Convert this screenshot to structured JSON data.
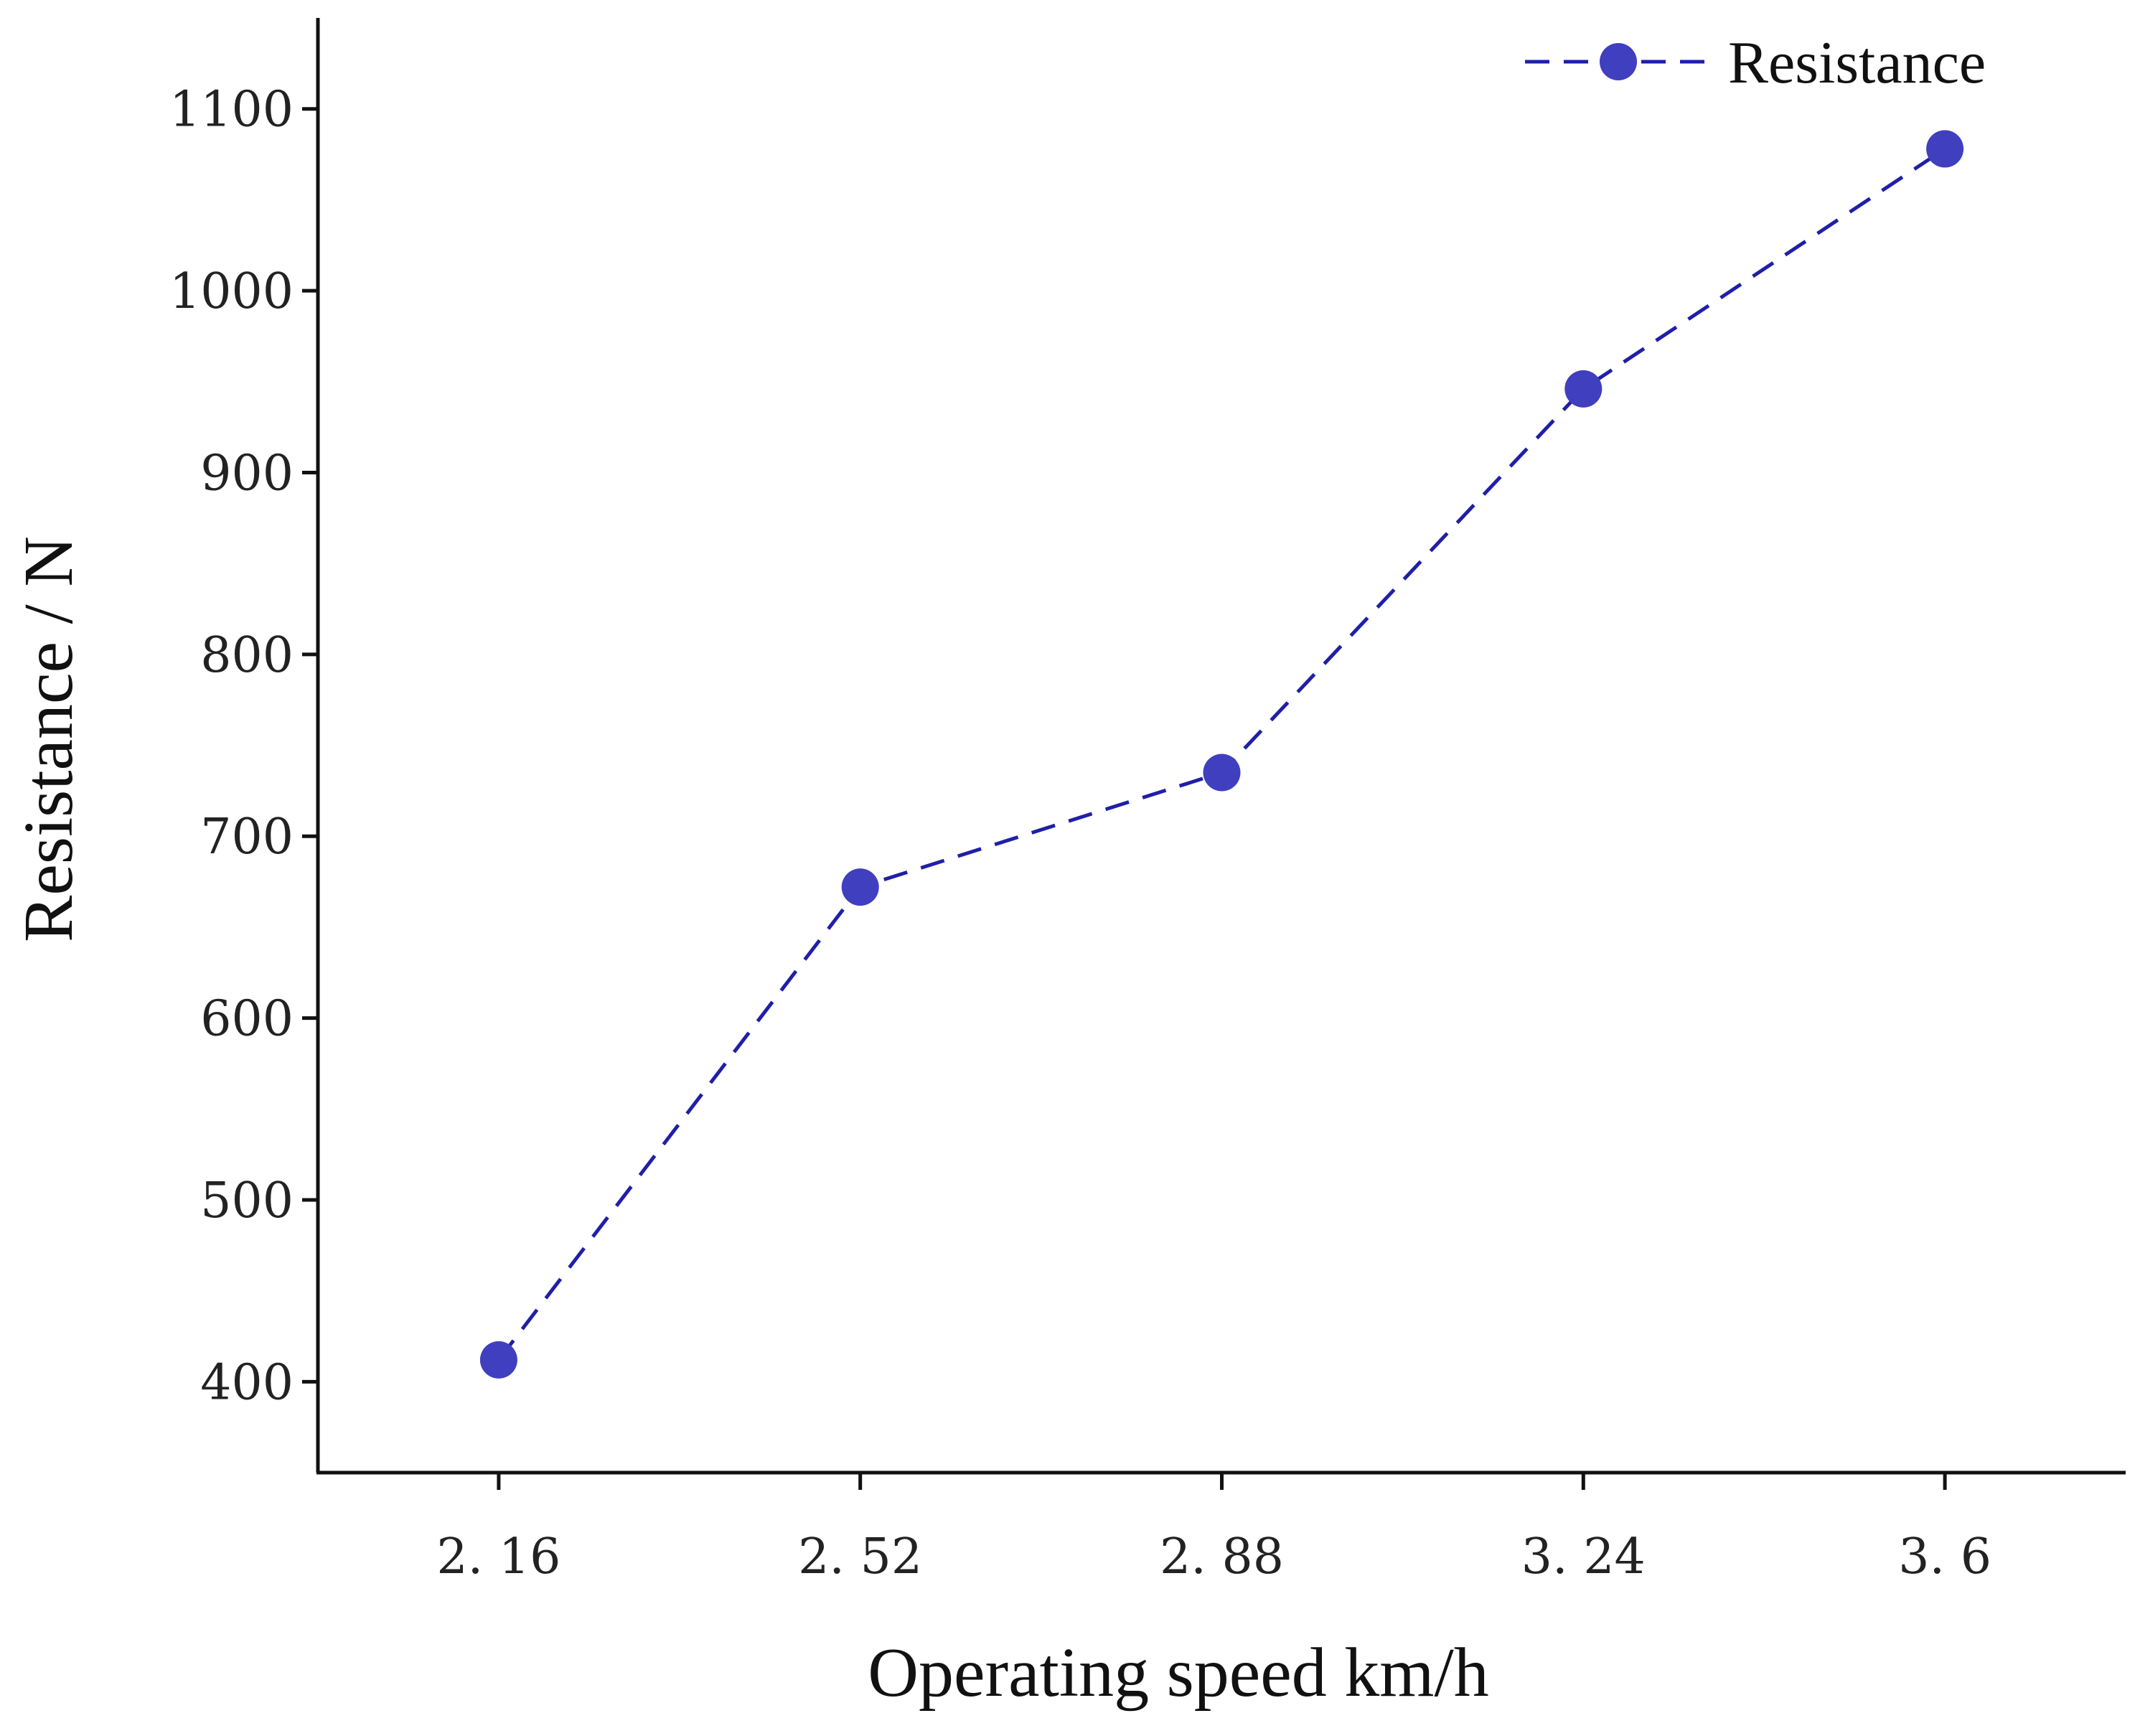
{
  "chart_data": {
    "type": "line",
    "title": "",
    "xlabel": "Operating speed  km/h",
    "ylabel": "Resistance / N",
    "categories": [
      "2. 16",
      "2. 52",
      "2. 88",
      "3. 24",
      "3. 6"
    ],
    "x": [
      2.16,
      2.52,
      2.88,
      3.24,
      3.6
    ],
    "series": [
      {
        "name": "Resistance",
        "values": [
          412,
          672,
          735,
          946,
          1078
        ],
        "color": "#3f3fbf",
        "line_color": "#1f1fa8",
        "line_style": "dashed",
        "marker": "circle"
      }
    ],
    "yticks": [
      400,
      500,
      600,
      700,
      800,
      900,
      1000,
      1100
    ],
    "ytick_labels": [
      "400",
      "500",
      "600",
      "700",
      "800",
      "900",
      "1000",
      "1100"
    ],
    "ylim": [
      350,
      1150
    ],
    "xlim": [
      1.98,
      3.78
    ],
    "grid": false,
    "legend_position": "top-right"
  }
}
